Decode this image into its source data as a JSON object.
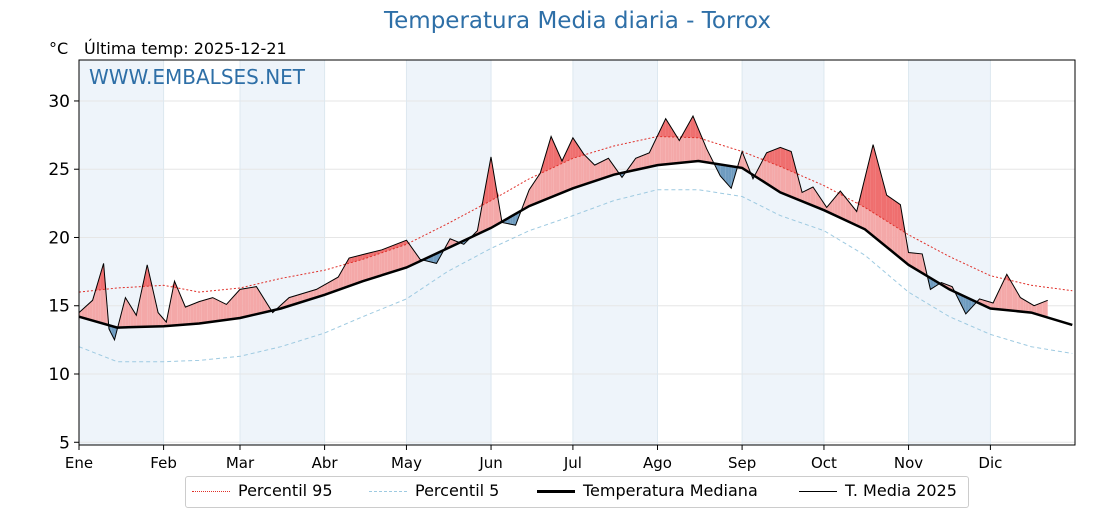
{
  "title": "Temperatura Media diaria - Torrox",
  "unit_label": "°C",
  "last_temp_label": "Última temp: 2025-12-21",
  "watermark": "WWW.EMBALSES.NET",
  "colors": {
    "title": "#2e6fa7",
    "p95": "#e0302a",
    "p5": "#9ecae1",
    "median": "#000000",
    "year": "#000000",
    "above_fill": "#f4a8a8",
    "above_fill_strong": "#ef6f6f",
    "below_fill": "#6f9cc0",
    "band": "#eef4fa"
  },
  "legend": {
    "items": [
      {
        "label": "Percentil 95",
        "style": "dotted",
        "color": "#e0302a"
      },
      {
        "label": "Percentil 5",
        "style": "dashed",
        "color": "#9ecae1"
      },
      {
        "label": "Temperatura Mediana",
        "style": "thick",
        "color": "#000000"
      },
      {
        "label": "T. Media 2025",
        "style": "thin",
        "color": "#000000"
      }
    ]
  },
  "chart_data": {
    "type": "line",
    "title": "Temperatura Media diaria - Torrox",
    "ylabel": "°C",
    "ylim": [
      4.8,
      33
    ],
    "yticks": [
      5,
      10,
      15,
      20,
      25,
      30
    ],
    "grid": true,
    "legend_position": "bottom",
    "months": [
      "Ene",
      "Feb",
      "Mar",
      "Abr",
      "May",
      "Jun",
      "Jul",
      "Ago",
      "Sep",
      "Oct",
      "Nov",
      "Dic"
    ],
    "month_start_day": [
      1,
      32,
      60,
      91,
      121,
      152,
      182,
      213,
      244,
      274,
      305,
      335
    ],
    "x_unit": "day of year",
    "series": [
      {
        "name": "Percentil 95",
        "x": [
          1,
          15,
          32,
          45,
          60,
          75,
          91,
          105,
          121,
          136,
          152,
          166,
          182,
          197,
          213,
          228,
          244,
          258,
          274,
          289,
          305,
          320,
          335,
          350,
          365
        ],
        "values": [
          16.0,
          16.3,
          16.5,
          16.0,
          16.3,
          17.0,
          17.6,
          18.4,
          19.5,
          21.0,
          22.7,
          24.3,
          25.8,
          26.7,
          27.4,
          27.3,
          26.3,
          25.2,
          23.8,
          22.2,
          20.2,
          18.6,
          17.2,
          16.5,
          16.1
        ]
      },
      {
        "name": "Percentil 5",
        "x": [
          1,
          15,
          32,
          45,
          60,
          75,
          91,
          105,
          121,
          136,
          152,
          166,
          182,
          197,
          213,
          228,
          244,
          258,
          274,
          289,
          305,
          320,
          335,
          350,
          365
        ],
        "values": [
          12.0,
          10.9,
          10.9,
          11.0,
          11.3,
          12.0,
          13.0,
          14.2,
          15.5,
          17.5,
          19.2,
          20.5,
          21.6,
          22.7,
          23.5,
          23.5,
          23.0,
          21.6,
          20.5,
          18.7,
          16.0,
          14.2,
          12.9,
          12.0,
          11.5
        ]
      },
      {
        "name": "Temperatura Mediana",
        "x": [
          1,
          15,
          32,
          45,
          60,
          75,
          91,
          105,
          121,
          136,
          152,
          166,
          182,
          197,
          213,
          228,
          244,
          258,
          274,
          289,
          305,
          320,
          335,
          350,
          365
        ],
        "values": [
          14.2,
          13.4,
          13.5,
          13.7,
          14.1,
          14.8,
          15.8,
          16.8,
          17.8,
          19.2,
          20.7,
          22.3,
          23.6,
          24.6,
          25.3,
          25.6,
          25.1,
          23.3,
          22.0,
          20.6,
          18.0,
          16.2,
          14.8,
          14.5,
          13.6
        ]
      },
      {
        "name": "T. Media 2025",
        "x": [
          1,
          6,
          10,
          12,
          14,
          18,
          22,
          26,
          30,
          33,
          36,
          40,
          45,
          50,
          55,
          60,
          66,
          72,
          78,
          88,
          96,
          100,
          106,
          112,
          121,
          126,
          132,
          137,
          142,
          147,
          152,
          156,
          161,
          166,
          170,
          174,
          178,
          182,
          186,
          190,
          195,
          200,
          205,
          210,
          216,
          221,
          226,
          231,
          236,
          240,
          244,
          248,
          253,
          258,
          262,
          266,
          270,
          275,
          280,
          286,
          292,
          297,
          302,
          305,
          310,
          313,
          317,
          321,
          326,
          331,
          336,
          341,
          346,
          351,
          356
        ],
        "values": [
          14.5,
          15.4,
          18.1,
          13.3,
          12.5,
          15.6,
          14.3,
          18.0,
          14.5,
          13.8,
          16.8,
          14.9,
          15.3,
          15.6,
          15.1,
          16.2,
          16.4,
          14.5,
          15.6,
          16.2,
          17.1,
          18.5,
          18.8,
          19.1,
          19.8,
          18.4,
          18.1,
          19.9,
          19.5,
          20.5,
          25.9,
          21.1,
          20.9,
          23.5,
          24.7,
          27.4,
          25.6,
          27.3,
          26.1,
          25.3,
          25.8,
          24.4,
          25.8,
          26.2,
          28.7,
          27.1,
          28.9,
          26.5,
          24.5,
          23.6,
          26.3,
          24.3,
          26.2,
          26.6,
          26.3,
          23.3,
          23.7,
          22.2,
          23.4,
          21.9,
          26.8,
          23.1,
          22.4,
          18.9,
          18.8,
          16.2,
          16.7,
          16.4,
          14.4,
          15.5,
          15.2,
          17.3,
          15.6,
          15.0,
          15.4
        ]
      }
    ]
  }
}
